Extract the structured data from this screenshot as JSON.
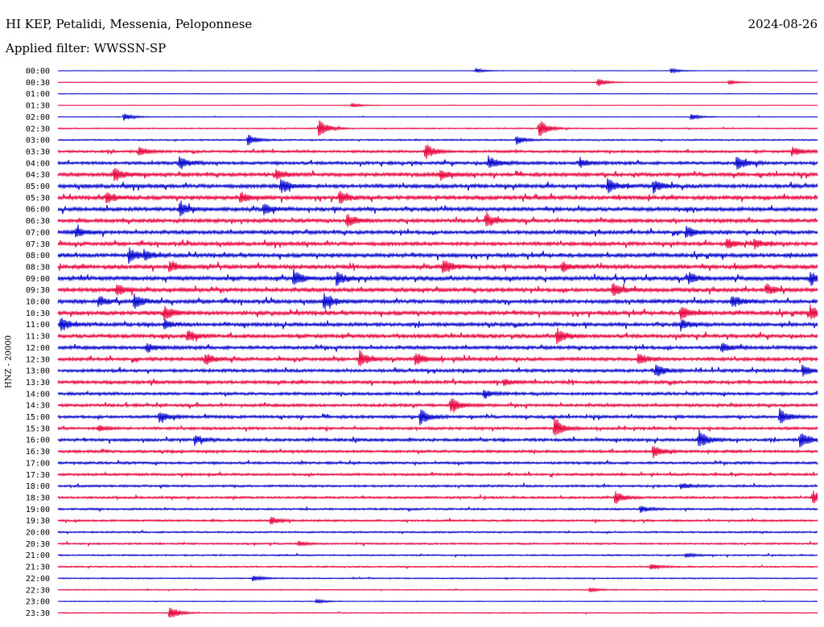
{
  "header": {
    "station": "HI KEP, Petalidi, Messenia, Peloponnese",
    "date": "2024-08-26",
    "filter": "Applied filter: WWSSN-SP"
  },
  "chart_data": {
    "type": "line",
    "title": "HI KEP, Petalidi, Messenia, Peloponnese",
    "subtitle": "Applied filter: WWSSN-SP",
    "ylabel": "HNZ - 20000",
    "xlabel": "",
    "colors": {
      "odd": "#0000cc",
      "even": "#e8003a"
    },
    "tick_labels": [
      "00:00",
      "00:30",
      "01:00",
      "01:30",
      "02:00",
      "02:30",
      "03:00",
      "03:30",
      "04:00",
      "04:30",
      "05:00",
      "05:30",
      "06:00",
      "06:30",
      "07:00",
      "07:30",
      "08:00",
      "08:30",
      "09:00",
      "09:30",
      "10:00",
      "10:30",
      "11:00",
      "11:30",
      "12:00",
      "12:30",
      "13:00",
      "13:30",
      "14:00",
      "14:30",
      "15:00",
      "15:30",
      "16:00",
      "16:30",
      "17:00",
      "17:30",
      "18:00",
      "18:30",
      "19:00",
      "19:30",
      "20:00",
      "20:30",
      "21:00",
      "21:30",
      "22:00",
      "22:30",
      "23:00",
      "23:30"
    ],
    "noise_levels": [
      0.2,
      0.2,
      0.25,
      0.2,
      0.3,
      0.5,
      0.6,
      1.0,
      1.3,
      1.5,
      1.6,
      1.6,
      1.6,
      1.5,
      1.5,
      1.5,
      1.6,
      1.7,
      1.7,
      1.6,
      1.6,
      1.6,
      1.5,
      1.5,
      1.4,
      1.4,
      1.3,
      1.3,
      1.2,
      1.2,
      1.2,
      1.1,
      1.2,
      1.1,
      1.0,
      1.0,
      0.9,
      0.9,
      0.8,
      0.8,
      0.7,
      0.7,
      0.6,
      0.6,
      0.5,
      0.4,
      0.3,
      0.4
    ],
    "events": [
      {
        "row": 0,
        "minute": 16.5,
        "amp": 3
      },
      {
        "row": 0,
        "minute": 24.2,
        "amp": 3
      },
      {
        "row": 1,
        "minute": 21.3,
        "amp": 6
      },
      {
        "row": 1,
        "minute": 26.5,
        "amp": 3
      },
      {
        "row": 3,
        "minute": 11.6,
        "amp": 3
      },
      {
        "row": 4,
        "minute": 2.6,
        "amp": 5
      },
      {
        "row": 4,
        "minute": 25.0,
        "amp": 4
      },
      {
        "row": 5,
        "minute": 10.3,
        "amp": 12
      },
      {
        "row": 5,
        "minute": 19.0,
        "amp": 12
      },
      {
        "row": 6,
        "minute": 7.5,
        "amp": 8
      },
      {
        "row": 6,
        "minute": 18.1,
        "amp": 6
      },
      {
        "row": 7,
        "minute": 3.2,
        "amp": 6
      },
      {
        "row": 7,
        "minute": 14.5,
        "amp": 11
      },
      {
        "row": 7,
        "minute": 29.0,
        "amp": 6
      },
      {
        "row": 8,
        "minute": 4.8,
        "amp": 9
      },
      {
        "row": 8,
        "minute": 17.0,
        "amp": 9
      },
      {
        "row": 8,
        "minute": 20.6,
        "amp": 7
      },
      {
        "row": 8,
        "minute": 26.8,
        "amp": 10
      },
      {
        "row": 9,
        "minute": 2.2,
        "amp": 9
      },
      {
        "row": 9,
        "minute": 8.6,
        "amp": 7
      },
      {
        "row": 9,
        "minute": 15.1,
        "amp": 7
      },
      {
        "row": 10,
        "minute": 8.8,
        "amp": 10
      },
      {
        "row": 10,
        "minute": 21.7,
        "amp": 9
      },
      {
        "row": 10,
        "minute": 23.5,
        "amp": 8
      },
      {
        "row": 11,
        "minute": 1.9,
        "amp": 8
      },
      {
        "row": 11,
        "minute": 11.1,
        "amp": 8
      },
      {
        "row": 11,
        "minute": 7.2,
        "amp": 7
      },
      {
        "row": 12,
        "minute": 4.8,
        "amp": 9
      },
      {
        "row": 12,
        "minute": 8.1,
        "amp": 6
      },
      {
        "row": 13,
        "minute": 11.4,
        "amp": 9
      },
      {
        "row": 13,
        "minute": 16.9,
        "amp": 10
      },
      {
        "row": 14,
        "minute": 0.7,
        "amp": 7
      },
      {
        "row": 14,
        "minute": 24.8,
        "amp": 8
      },
      {
        "row": 15,
        "minute": 26.4,
        "amp": 8
      },
      {
        "row": 15,
        "minute": 27.5,
        "amp": 6
      },
      {
        "row": 16,
        "minute": 2.8,
        "amp": 10
      },
      {
        "row": 16,
        "minute": 3.4,
        "amp": 6
      },
      {
        "row": 17,
        "minute": 4.4,
        "amp": 7
      },
      {
        "row": 17,
        "minute": 15.2,
        "amp": 10
      },
      {
        "row": 17,
        "minute": 19.9,
        "amp": 7
      },
      {
        "row": 18,
        "minute": 9.3,
        "amp": 10
      },
      {
        "row": 18,
        "minute": 11.0,
        "amp": 9
      },
      {
        "row": 18,
        "minute": 24.9,
        "amp": 7
      },
      {
        "row": 18,
        "minute": 29.7,
        "amp": 10
      },
      {
        "row": 19,
        "minute": 2.3,
        "amp": 9
      },
      {
        "row": 19,
        "minute": 21.9,
        "amp": 9
      },
      {
        "row": 19,
        "minute": 28.0,
        "amp": 7
      },
      {
        "row": 20,
        "minute": 1.6,
        "amp": 7
      },
      {
        "row": 20,
        "minute": 3.0,
        "amp": 10
      },
      {
        "row": 20,
        "minute": 10.5,
        "amp": 10
      },
      {
        "row": 20,
        "minute": 26.6,
        "amp": 8
      },
      {
        "row": 21,
        "minute": 4.2,
        "amp": 9
      },
      {
        "row": 21,
        "minute": 24.6,
        "amp": 9
      },
      {
        "row": 21,
        "minute": 29.7,
        "amp": 9
      },
      {
        "row": 22,
        "minute": 0.1,
        "amp": 9
      },
      {
        "row": 22,
        "minute": 4.2,
        "amp": 5
      },
      {
        "row": 22,
        "minute": 24.6,
        "amp": 7
      },
      {
        "row": 23,
        "minute": 5.1,
        "amp": 8
      },
      {
        "row": 23,
        "minute": 19.7,
        "amp": 10
      },
      {
        "row": 24,
        "minute": 3.5,
        "amp": 7
      },
      {
        "row": 24,
        "minute": 26.2,
        "amp": 6
      },
      {
        "row": 25,
        "minute": 5.8,
        "amp": 8
      },
      {
        "row": 25,
        "minute": 11.9,
        "amp": 11
      },
      {
        "row": 25,
        "minute": 14.1,
        "amp": 9
      },
      {
        "row": 25,
        "minute": 22.9,
        "amp": 8
      },
      {
        "row": 26,
        "minute": 23.6,
        "amp": 9
      },
      {
        "row": 26,
        "minute": 29.4,
        "amp": 7
      },
      {
        "row": 27,
        "minute": 17.6,
        "amp": 4
      },
      {
        "row": 28,
        "minute": 16.8,
        "amp": 5
      },
      {
        "row": 29,
        "minute": 15.5,
        "amp": 11
      },
      {
        "row": 30,
        "minute": 4.0,
        "amp": 7
      },
      {
        "row": 30,
        "minute": 14.3,
        "amp": 10
      },
      {
        "row": 30,
        "minute": 28.5,
        "amp": 10
      },
      {
        "row": 31,
        "minute": 19.6,
        "amp": 14
      },
      {
        "row": 31,
        "minute": 1.6,
        "amp": 4
      },
      {
        "row": 32,
        "minute": 5.4,
        "amp": 6
      },
      {
        "row": 32,
        "minute": 25.3,
        "amp": 12
      },
      {
        "row": 32,
        "minute": 29.3,
        "amp": 12
      },
      {
        "row": 33,
        "minute": 23.5,
        "amp": 9
      },
      {
        "row": 36,
        "minute": 24.6,
        "amp": 4
      },
      {
        "row": 37,
        "minute": 22.0,
        "amp": 8
      },
      {
        "row": 37,
        "minute": 29.8,
        "amp": 9
      },
      {
        "row": 38,
        "minute": 23.0,
        "amp": 5
      },
      {
        "row": 39,
        "minute": 8.4,
        "amp": 5
      },
      {
        "row": 41,
        "minute": 9.5,
        "amp": 3
      },
      {
        "row": 42,
        "minute": 24.8,
        "amp": 3
      },
      {
        "row": 43,
        "minute": 23.4,
        "amp": 4
      },
      {
        "row": 44,
        "minute": 7.7,
        "amp": 4
      },
      {
        "row": 45,
        "minute": 21.0,
        "amp": 3
      },
      {
        "row": 46,
        "minute": 10.2,
        "amp": 3
      },
      {
        "row": 47,
        "minute": 4.4,
        "amp": 10
      }
    ]
  }
}
